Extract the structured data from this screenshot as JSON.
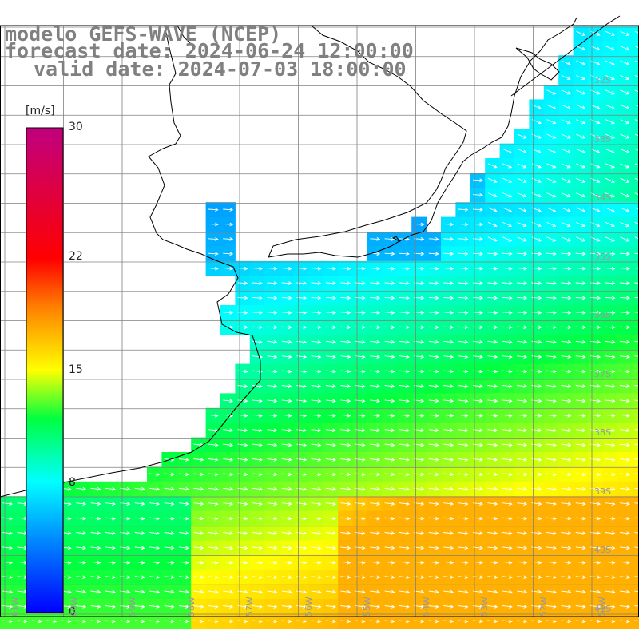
{
  "header": {
    "model_line": "modelo GEFS-WAVE (NCEP)",
    "forecast_line": "forecast date: 2024-06-24 12:00:00",
    "valid_line": "valid date: 2024-07-03 18:00:00"
  },
  "colorbar": {
    "unit": "[m/s]",
    "ticks": [
      {
        "value": 30,
        "label": "30"
      },
      {
        "value": 22,
        "label": "22"
      },
      {
        "value": 15,
        "label": "15"
      },
      {
        "value": 8,
        "label": "8"
      },
      {
        "value": 0,
        "label": "0"
      }
    ],
    "min": 0,
    "max": 30
  },
  "latitude_labels": [
    "32S",
    "33S",
    "34S",
    "35S",
    "36S",
    "37S",
    "38S",
    "39S",
    "40S",
    "41S"
  ],
  "longitude_labels": [
    "61W",
    "60W",
    "59W",
    "58W",
    "57W",
    "56W",
    "55W",
    "54W",
    "53W",
    "52W",
    "51W"
  ],
  "colors": {
    "land": "#ffffff",
    "coastline": "#000000",
    "grid": "#808080",
    "arrows": "#ffffff"
  }
}
